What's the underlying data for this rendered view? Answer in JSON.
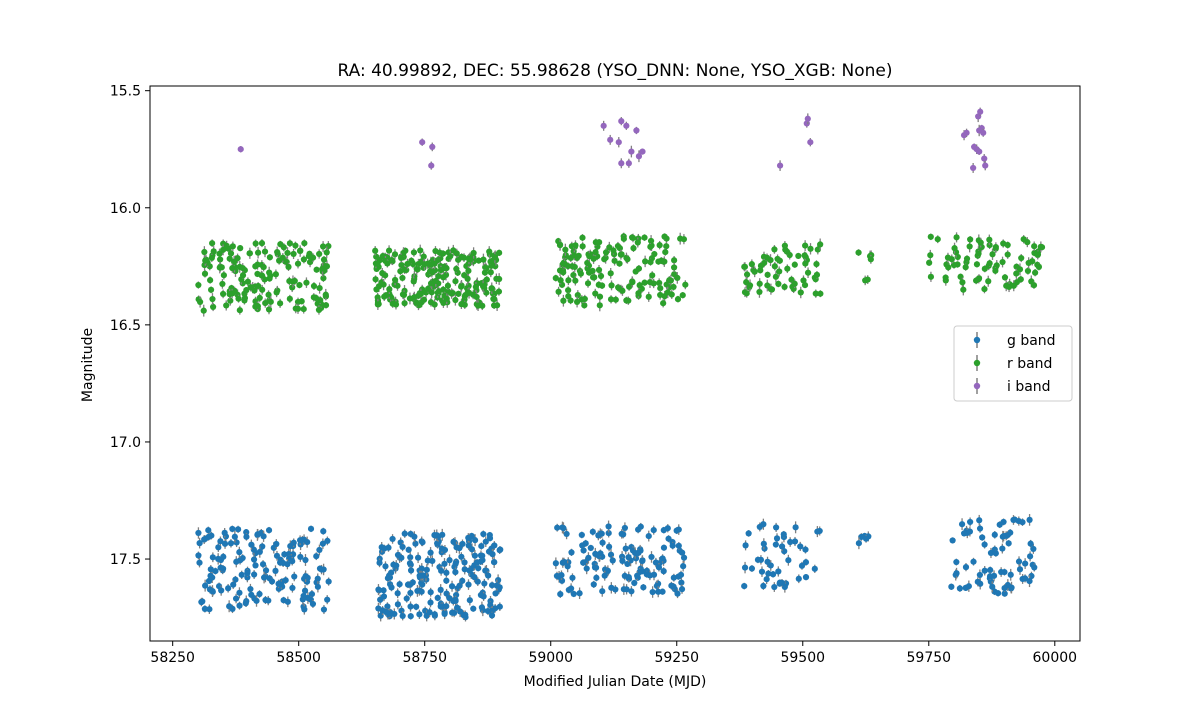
{
  "chart_data": {
    "type": "scatter",
    "title": "RA: 40.99892, DEC: 55.98628 (YSO_DNN: None, YSO_XGB: None)",
    "xlabel": "Modified Julian Date (MJD)",
    "ylabel": "Magnitude",
    "xlim": [
      58205,
      60050
    ],
    "ylim": [
      17.85,
      15.48
    ],
    "y_inverted": true,
    "xticks": [
      58250,
      58500,
      58750,
      59000,
      59250,
      59500,
      59750,
      60000
    ],
    "yticks": [
      15.5,
      16.0,
      16.5,
      17.0,
      17.5
    ],
    "xtick_labels": [
      "58250",
      "58500",
      "58750",
      "59000",
      "59250",
      "59500",
      "59750",
      "60000"
    ],
    "ytick_labels": [
      "15.5",
      "16.0",
      "16.5",
      "17.0",
      "17.5"
    ],
    "grid": false,
    "legend_position": "right",
    "series": [
      {
        "name": "g band",
        "color": "#1f77b4",
        "error_bars": true,
        "seasons": [
          {
            "x_range": [
              58300,
              58560
            ],
            "y_range": [
              17.37,
              17.72
            ],
            "count": 150
          },
          {
            "x_range": [
              58650,
              58900
            ],
            "y_range": [
              17.39,
              17.75
            ],
            "count": 200
          },
          {
            "x_range": [
              59010,
              59270
            ],
            "y_range": [
              17.36,
              17.65
            ],
            "count": 130
          },
          {
            "x_range": [
              59380,
              59540
            ],
            "y_range": [
              17.35,
              17.62
            ],
            "count": 45
          },
          {
            "x_range": [
              59610,
              59640
            ],
            "y_range": [
              17.37,
              17.5
            ],
            "count": 5
          },
          {
            "x_range": [
              59790,
              59970
            ],
            "y_range": [
              17.33,
              17.65
            ],
            "count": 70
          }
        ]
      },
      {
        "name": "r band",
        "color": "#2ca02c",
        "error_bars": true,
        "seasons": [
          {
            "x_range": [
              58300,
              58560
            ],
            "y_range": [
              16.15,
              16.44
            ],
            "count": 160
          },
          {
            "x_range": [
              58650,
              58900
            ],
            "y_range": [
              16.18,
              16.42
            ],
            "count": 220
          },
          {
            "x_range": [
              59010,
              59270
            ],
            "y_range": [
              16.12,
              16.42
            ],
            "count": 150
          },
          {
            "x_range": [
              59380,
              59540
            ],
            "y_range": [
              16.15,
              16.37
            ],
            "count": 60
          },
          {
            "x_range": [
              59610,
              59640
            ],
            "y_range": [
              16.15,
              16.35
            ],
            "count": 6
          },
          {
            "x_range": [
              59750,
              59980
            ],
            "y_range": [
              16.12,
              16.35
            ],
            "count": 80
          }
        ]
      },
      {
        "name": "i band",
        "color": "#9467bd",
        "error_bars": true,
        "points": [
          [
            58385,
            15.75
          ],
          [
            58745,
            15.72
          ],
          [
            58765,
            15.74
          ],
          [
            58763,
            15.82
          ],
          [
            59105,
            15.65
          ],
          [
            59118,
            15.71
          ],
          [
            59135,
            15.72
          ],
          [
            59140,
            15.63
          ],
          [
            59150,
            15.65
          ],
          [
            59160,
            15.76
          ],
          [
            59170,
            15.67
          ],
          [
            59182,
            15.76
          ],
          [
            59175,
            15.78
          ],
          [
            59140,
            15.81
          ],
          [
            59155,
            15.81
          ],
          [
            59455,
            15.82
          ],
          [
            59508,
            15.64
          ],
          [
            59510,
            15.62
          ],
          [
            59515,
            15.72
          ],
          [
            59820,
            15.69
          ],
          [
            59825,
            15.68
          ],
          [
            59840,
            15.74
          ],
          [
            59845,
            15.75
          ],
          [
            59850,
            15.76
          ],
          [
            59848,
            15.61
          ],
          [
            59852,
            15.59
          ],
          [
            59855,
            15.66
          ],
          [
            59858,
            15.68
          ],
          [
            59860,
            15.79
          ],
          [
            59862,
            15.82
          ],
          [
            59838,
            15.83
          ],
          [
            59850,
            15.67
          ]
        ]
      }
    ]
  }
}
